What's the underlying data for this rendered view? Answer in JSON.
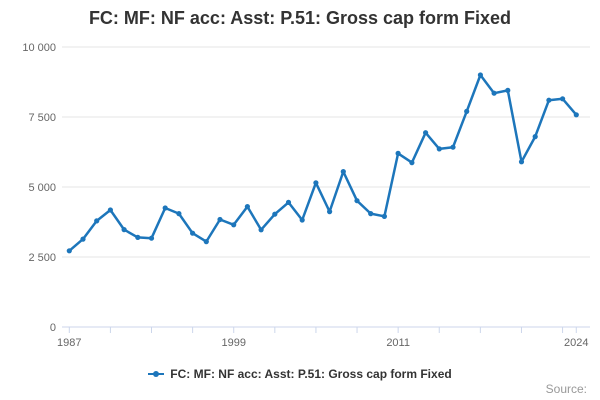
{
  "header": {
    "title": "FC: MF: NF acc: Asst: P.51: Gross cap form Fixed"
  },
  "legend": {
    "label": "FC: MF: NF acc: Asst: P.51: Gross cap form Fixed"
  },
  "footer": {
    "source_label": "Source:"
  },
  "colors": {
    "series": "#1d76bb",
    "title_text": "#333333",
    "axis_label": "#666666",
    "gridline": "#e6e6e6",
    "axis_line": "#ccd6eb",
    "legend_text": "#333333",
    "source_text": "#999999"
  },
  "chart_data": {
    "type": "line",
    "title": "FC: MF: NF acc: Asst: P.51: Gross cap form Fixed",
    "series_name": "FC: MF: NF acc: Asst: P.51: Gross cap form Fixed",
    "x": [
      1987,
      1988,
      1989,
      1990,
      1991,
      1992,
      1993,
      1994,
      1995,
      1996,
      1997,
      1998,
      1999,
      2000,
      2001,
      2002,
      2003,
      2004,
      2005,
      2006,
      2007,
      2008,
      2009,
      2010,
      2011,
      2012,
      2013,
      2014,
      2015,
      2016,
      2017,
      2018,
      2019,
      2020,
      2021,
      2022,
      2023,
      2024
    ],
    "values": [
      2720,
      3140,
      3790,
      4180,
      3480,
      3200,
      3170,
      4250,
      4050,
      3350,
      3050,
      3840,
      3650,
      4300,
      3470,
      4030,
      4450,
      3820,
      5150,
      4120,
      5550,
      4510,
      4050,
      3950,
      6200,
      5870,
      6940,
      6360,
      6420,
      7700,
      9000,
      8350,
      8450,
      5900,
      6800,
      8100,
      8150,
      7580
    ],
    "xlabel": "",
    "ylabel": "",
    "ylim": [
      0,
      10000
    ],
    "y_ticks": [
      {
        "value": 0,
        "label": "0"
      },
      {
        "value": 2500,
        "label": "2 500"
      },
      {
        "value": 5000,
        "label": "5 000"
      },
      {
        "value": 7500,
        "label": "7 500"
      },
      {
        "value": 10000,
        "label": "10 000"
      }
    ],
    "x_tick_years": [
      1987,
      1990,
      1993,
      1996,
      1999,
      2002,
      2005,
      2008,
      2011,
      2014,
      2017,
      2020,
      2023,
      2024
    ],
    "x_label_years": [
      1987,
      1999,
      2011,
      2024
    ],
    "grid": "horizontal-only",
    "legend_position": "bottom-center",
    "marker": "circle"
  }
}
